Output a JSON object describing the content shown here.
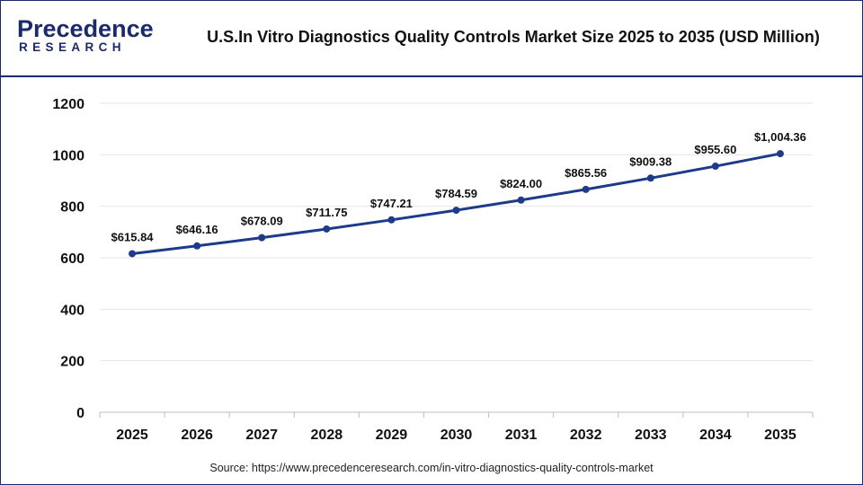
{
  "header": {
    "logo_main": "Precedence",
    "logo_sub": "RESEARCH",
    "title": "U.S.In Vitro Diagnostics Quality Controls Market Size 2025 to 2035 (USD Million)"
  },
  "source": "Source: https://www.precedenceresearch.com/in-vitro-diagnostics-quality-controls-market",
  "colors": {
    "line": "#1e3a8a",
    "brand": "#1b2a6b",
    "grid": "#e6e6e6"
  },
  "chart_data": {
    "type": "line",
    "title": "U.S.In Vitro Diagnostics Quality Controls Market Size 2025 to 2035 (USD Million)",
    "xlabel": "",
    "ylabel": "",
    "categories": [
      "2025",
      "2026",
      "2027",
      "2028",
      "2029",
      "2030",
      "2031",
      "2032",
      "2033",
      "2034",
      "2035"
    ],
    "values": [
      615.84,
      646.16,
      678.09,
      711.75,
      747.21,
      784.59,
      824.0,
      865.56,
      909.38,
      955.6,
      1004.36
    ],
    "data_labels": [
      "$615.84",
      "$646.16",
      "$678.09",
      "$711.75",
      "$747.21",
      "$784.59",
      "$824.00",
      "$865.56",
      "$909.38",
      "$955.60",
      "$1,004.36"
    ],
    "ylim": [
      0,
      1200
    ],
    "yticks": [
      "0",
      "200",
      "400",
      "600",
      "800",
      "1000",
      "1200"
    ],
    "grid": true,
    "legend": "none"
  }
}
